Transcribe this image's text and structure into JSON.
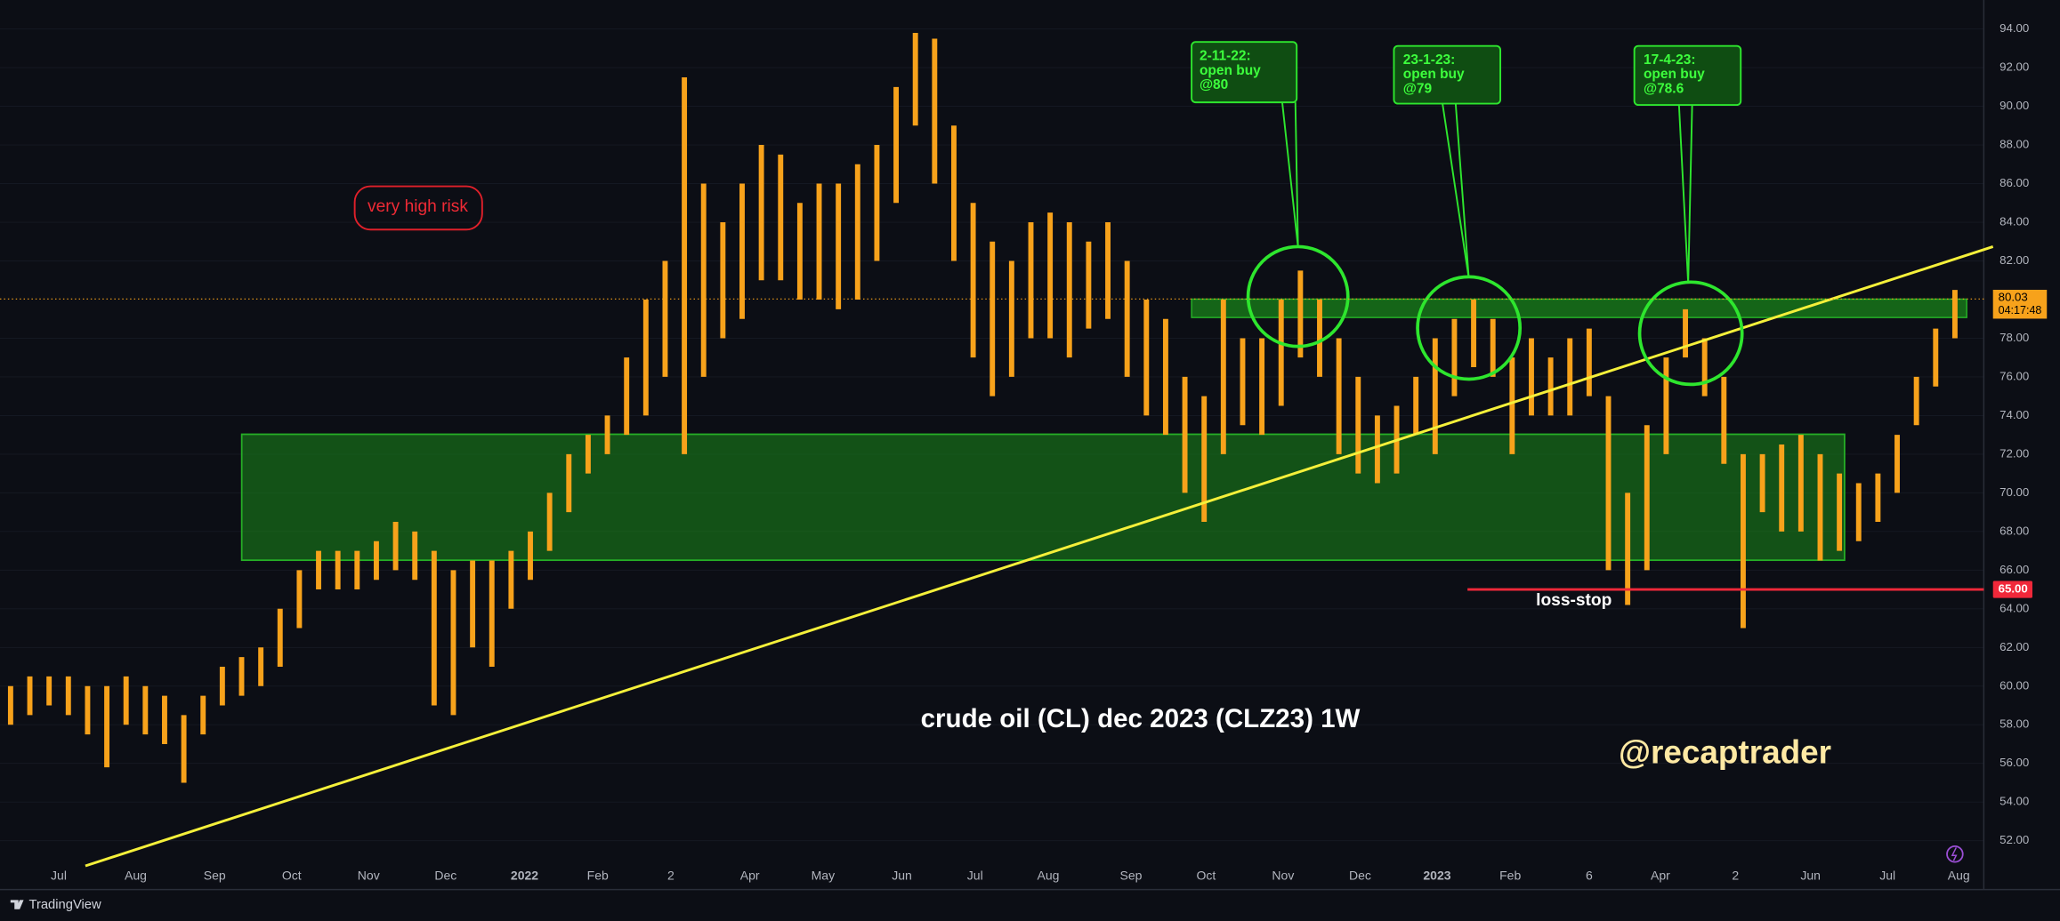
{
  "chart_data": {
    "type": "ohlc",
    "title": "crude oil (CL) dec 2023 (CLZ23) 1W",
    "watermark": "@recaptrader",
    "brand": "TradingView",
    "risk_note": "very high risk",
    "stop_note": "loss-stop",
    "callouts": [
      {
        "lines": [
          "2-11-22:",
          "open buy",
          "@80"
        ]
      },
      {
        "lines": [
          "23-1-23:",
          "open buy",
          "@79"
        ]
      },
      {
        "lines": [
          "17-4-23:",
          "open buy",
          "@78.6"
        ]
      }
    ],
    "color": "#f7a21b",
    "high": [
      60,
      60.5,
      60.5,
      60.5,
      60,
      60,
      60.5,
      60,
      59.5,
      58.5,
      59.5,
      61,
      61.5,
      62,
      64,
      66,
      67,
      67,
      67,
      67.5,
      68.5,
      68,
      67,
      66,
      66.5,
      66.5,
      67,
      68,
      70,
      72,
      73,
      74,
      77,
      80,
      82,
      91.5,
      86,
      84,
      86,
      88,
      87.5,
      85,
      86,
      86,
      87,
      88,
      91,
      93.8,
      93.5,
      89,
      85,
      83,
      82,
      84,
      84.5,
      84,
      83,
      84,
      82,
      80,
      79,
      76,
      75,
      80,
      78,
      78,
      80,
      81.5,
      80,
      78,
      76,
      74,
      74.5,
      76,
      78,
      79,
      80,
      79,
      77,
      78,
      77,
      78,
      78.5,
      75,
      70,
      73.5,
      77,
      79.5,
      78,
      76,
      72,
      72,
      72.5,
      73,
      72,
      71,
      70.5,
      71,
      73,
      76,
      78.5,
      80.5
    ],
    "low": [
      58,
      58.5,
      59,
      58.5,
      57.5,
      55.8,
      58,
      57.5,
      57,
      55,
      57.5,
      59,
      59.5,
      60,
      61,
      63,
      65,
      65,
      65,
      65.5,
      66,
      65.5,
      59,
      58.5,
      62,
      61,
      64,
      65.5,
      67,
      69,
      71,
      72,
      73,
      74,
      76,
      72,
      76,
      78,
      79,
      81,
      81,
      80,
      80,
      79.5,
      80,
      82,
      85,
      89,
      86,
      82,
      77,
      75,
      76,
      78,
      78,
      77,
      78.5,
      79,
      76,
      74,
      73,
      70,
      68.5,
      72,
      73.5,
      73,
      74.5,
      77,
      76,
      72,
      71,
      70.5,
      71,
      73,
      72,
      75,
      76.5,
      76,
      72,
      74,
      74,
      74,
      75,
      66,
      64.2,
      66,
      72,
      77,
      75,
      71.5,
      63,
      69,
      68,
      68,
      66.5,
      67,
      67.5,
      68.5,
      70,
      73.5,
      75.5,
      78
    ],
    "xlim": [
      -0.55,
      102.5
    ],
    "xticks": [
      {
        "value": 2.5,
        "label": "Jul"
      },
      {
        "value": 6.5,
        "label": "Aug"
      },
      {
        "value": 10.6,
        "label": "Sep"
      },
      {
        "value": 14.6,
        "label": "Oct"
      },
      {
        "value": 18.6,
        "label": "Nov"
      },
      {
        "value": 22.6,
        "label": "Dec"
      },
      {
        "value": 26.7,
        "label": "2022"
      },
      {
        "value": 30.5,
        "label": "Feb"
      },
      {
        "value": 34.3,
        "label": "2"
      },
      {
        "value": 38.4,
        "label": "Apr"
      },
      {
        "value": 42.2,
        "label": "May"
      },
      {
        "value": 46.3,
        "label": "Jun"
      },
      {
        "value": 50.1,
        "label": "Jul"
      },
      {
        "value": 53.9,
        "label": "Aug"
      },
      {
        "value": 58.2,
        "label": "Sep"
      },
      {
        "value": 62.1,
        "label": "Oct"
      },
      {
        "value": 66.1,
        "label": "Nov"
      },
      {
        "value": 70.1,
        "label": "Dec"
      },
      {
        "value": 74.1,
        "label": "2023"
      },
      {
        "value": 77.9,
        "label": "Feb"
      },
      {
        "value": 82,
        "label": "6"
      },
      {
        "value": 85.7,
        "label": "Apr"
      },
      {
        "value": 89.6,
        "label": "2"
      },
      {
        "value": 93.5,
        "label": "Jun"
      },
      {
        "value": 97.5,
        "label": "Jul"
      },
      {
        "value": 101.2,
        "label": "Aug"
      }
    ],
    "ylim": [
      50.9,
      95.5
    ],
    "yticks": [
      {
        "value": 52,
        "label": "52.00"
      },
      {
        "value": 54,
        "label": "54.00"
      },
      {
        "value": 56,
        "label": "56.00"
      },
      {
        "value": 58,
        "label": "58.00"
      },
      {
        "value": 60,
        "label": "60.00"
      },
      {
        "value": 62,
        "label": "62.00"
      },
      {
        "value": 64,
        "label": "64.00"
      },
      {
        "value": 66,
        "label": "66.00"
      },
      {
        "value": 68,
        "label": "68.00"
      },
      {
        "value": 70,
        "label": "70.00"
      },
      {
        "value": 72,
        "label": "72.00"
      },
      {
        "value": 74,
        "label": "74.00"
      },
      {
        "value": 76,
        "label": "76.00"
      },
      {
        "value": 78,
        "label": "78.00"
      },
      {
        "value": 82,
        "label": "82.00"
      },
      {
        "value": 84,
        "label": "84.00"
      },
      {
        "value": 86,
        "label": "86.00"
      },
      {
        "value": 88,
        "label": "88.00"
      },
      {
        "value": 90,
        "label": "90.00"
      },
      {
        "value": 92,
        "label": "92.00"
      },
      {
        "value": 94,
        "label": "94.00"
      }
    ],
    "last_price": {
      "value": 80.03,
      "label": "80.03"
    },
    "countdown": "04:17:48",
    "stop": {
      "value": 65,
      "label": "65.00"
    }
  }
}
